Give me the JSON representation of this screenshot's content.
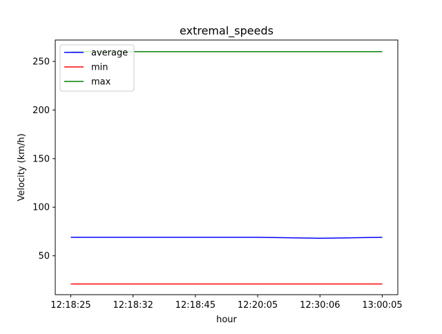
{
  "chart_data": {
    "type": "line",
    "title": "extremal_speeds",
    "xlabel": "hour",
    "ylabel": "Velocity (km/h)",
    "categories": [
      "12:18:25",
      "12:18:32",
      "12:18:45",
      "12:20:05",
      "12:30:06",
      "13:00:05"
    ],
    "ylim": [
      10,
      272
    ],
    "yticks": [
      50,
      100,
      150,
      200,
      250
    ],
    "grid": false,
    "legend_position": "top-left",
    "series": [
      {
        "name": "average",
        "color": "#0000ff",
        "values": [
          69,
          69,
          69,
          69,
          68,
          69
        ]
      },
      {
        "name": "min",
        "color": "#ff0000",
        "values": [
          21,
          21,
          21,
          21,
          21,
          21
        ]
      },
      {
        "name": "max",
        "color": "#008000",
        "values": [
          260,
          260,
          260,
          260,
          260,
          260
        ]
      }
    ]
  }
}
